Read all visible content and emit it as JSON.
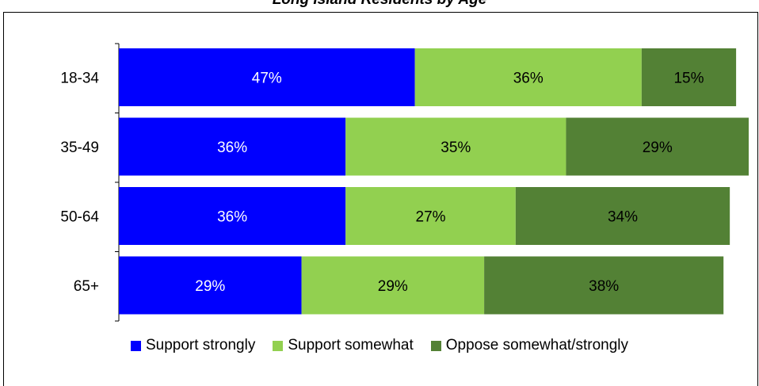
{
  "chart_data": {
    "type": "bar",
    "orientation": "horizontal",
    "stacked": true,
    "title": "Long Island Residents by Age",
    "categories": [
      "18-34",
      "35-49",
      "50-64",
      "65+"
    ],
    "series": [
      {
        "name": "Support strongly",
        "color": "#0000ff",
        "label_color": "#ffffff",
        "values": [
          47,
          36,
          36,
          29
        ]
      },
      {
        "name": "Support somewhat",
        "color": "#92d050",
        "label_color": "#000000",
        "values": [
          36,
          35,
          27,
          29
        ]
      },
      {
        "name": "Oppose somewhat/strongly",
        "color": "#538135",
        "label_color": "#000000",
        "values": [
          15,
          29,
          34,
          38
        ]
      }
    ],
    "value_suffix": "%",
    "xlim": [
      0,
      100
    ],
    "grid": false,
    "legend_position": "bottom"
  }
}
